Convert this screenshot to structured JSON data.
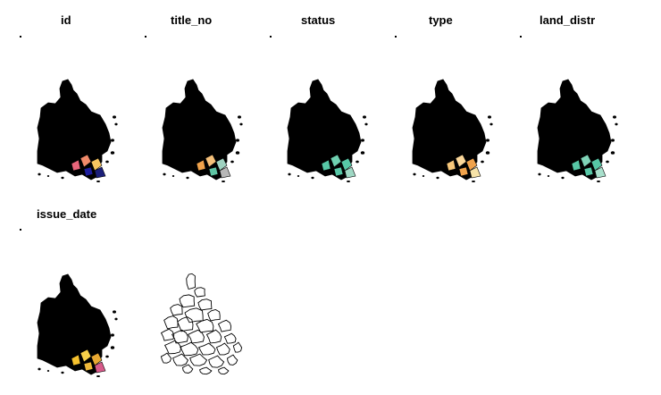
{
  "figure": {
    "panels": [
      {
        "title": "id",
        "style": "filled",
        "palette": [
          "#e8657b",
          "#f08a6a",
          "#f7c561",
          "#1b1f7a",
          "#1d1d9c"
        ]
      },
      {
        "title": "title_no",
        "style": "filled",
        "palette": [
          "#f0a24b",
          "#f5c07a",
          "#9fd2c0",
          "#b8b8b8",
          "#5ec4a3"
        ]
      },
      {
        "title": "status",
        "style": "filled",
        "palette": [
          "#57c7a6",
          "#6fd0b0",
          "#57c7a6",
          "#9fd8c4",
          "#57c7a6"
        ]
      },
      {
        "title": "type",
        "style": "filled",
        "palette": [
          "#f7c77a",
          "#fbd79a",
          "#f0a24b",
          "#f7e3a8",
          "#f0a24b"
        ]
      },
      {
        "title": "land_distr",
        "style": "filled",
        "palette": [
          "#57c7a6",
          "#7fd3b7",
          "#57c7a6",
          "#a8e0cc",
          "#57c7a6"
        ]
      },
      {
        "title": "issue_date",
        "style": "filled",
        "palette": [
          "#f5c12e",
          "#f7d04a",
          "#e8a832",
          "#d85a8a",
          "#f0b93a"
        ]
      },
      {
        "title": "",
        "style": "outline",
        "palette": []
      }
    ]
  }
}
